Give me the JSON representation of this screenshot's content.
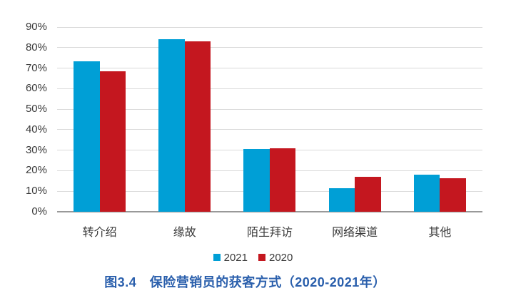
{
  "figure": {
    "caption": "图3.4　保险营销员的获客方式（2020-2021年）",
    "caption_color": "#2A5FAC"
  },
  "colors": {
    "grid": "#DADADA",
    "axis": "#999999",
    "text": "#3A3A3A",
    "series_2021": "#009FD6",
    "series_2020": "#C4171F"
  },
  "chart_data": {
    "type": "bar",
    "title": "图3.4　保险营销员的获客方式（2020-2021年）",
    "categories": [
      "转介绍",
      "缘故",
      "陌生拜访",
      "网络渠道",
      "其他"
    ],
    "series": [
      {
        "name": "2021",
        "color": "#009FD6",
        "values": [
          73.3,
          84.1,
          30.6,
          11.5,
          18.0
        ]
      },
      {
        "name": "2020",
        "color": "#C4171F",
        "values": [
          68.5,
          82.9,
          31.0,
          17.0,
          16.2
        ]
      }
    ],
    "xlabel": "",
    "ylabel": "",
    "y_ticks": [
      "90%",
      "80%",
      "70%",
      "60%",
      "50%",
      "40%",
      "30%",
      "20%",
      "10%",
      "0%"
    ],
    "ylim": [
      0,
      90
    ],
    "grid": true,
    "legend_position": "bottom"
  }
}
